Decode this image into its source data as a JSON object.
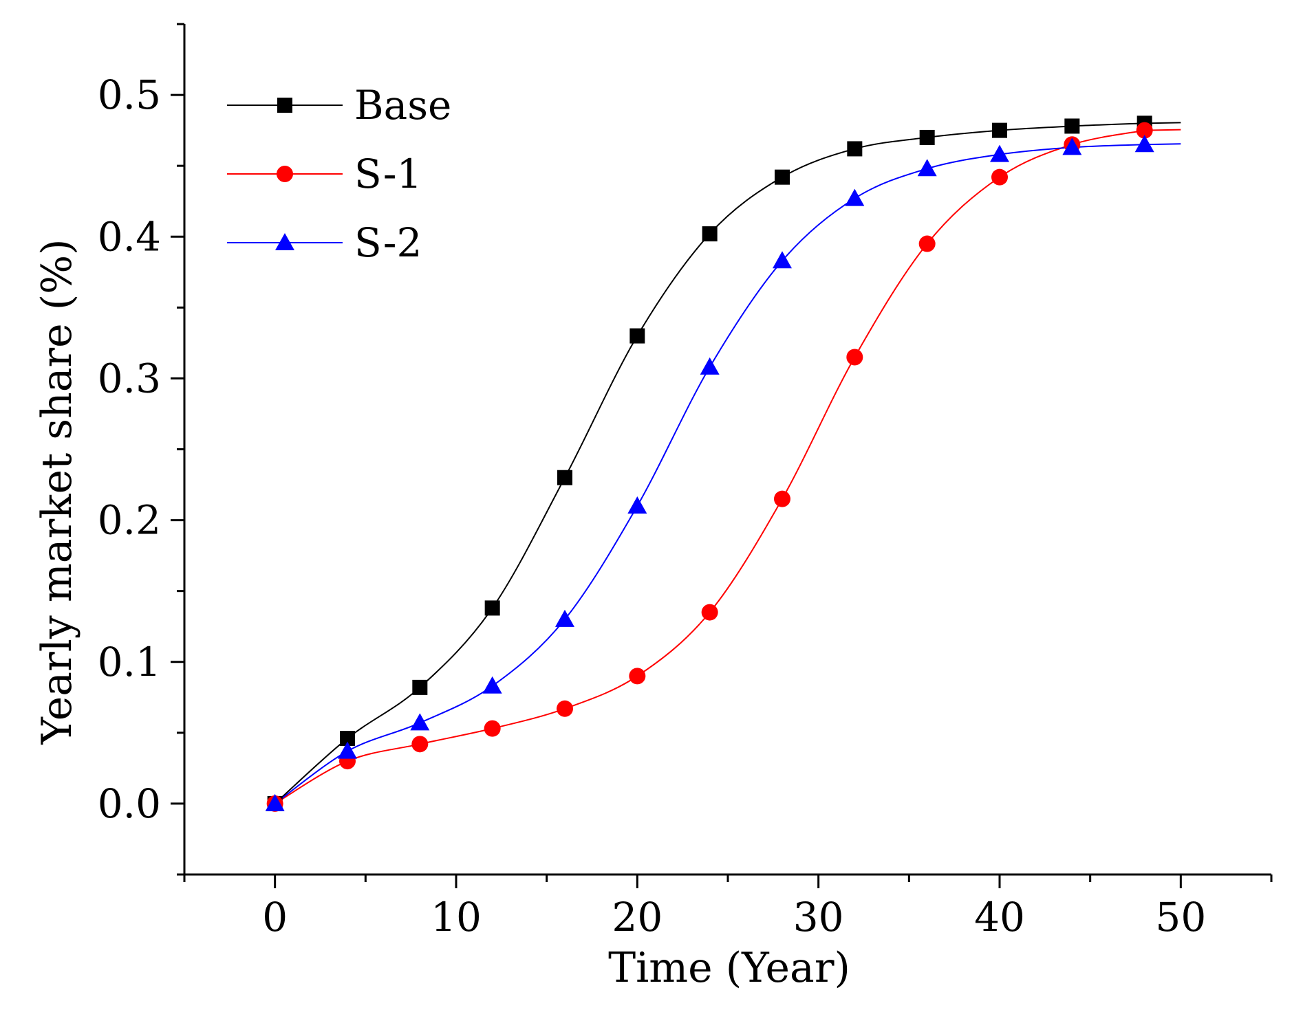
{
  "chart_data": {
    "type": "line",
    "title": "",
    "xlabel": "Time (Year)",
    "ylabel": "Yearly market share (%)",
    "xlim": [
      -5,
      55
    ],
    "ylim": [
      -0.05,
      0.55
    ],
    "x_ticks": [
      0,
      10,
      20,
      30,
      40,
      50
    ],
    "x_tick_labels": [
      "0",
      "10",
      "20",
      "30",
      "40",
      "50"
    ],
    "y_ticks": [
      0.0,
      0.1,
      0.2,
      0.3,
      0.4,
      0.5
    ],
    "y_tick_labels": [
      "0.0",
      "0.1",
      "0.2",
      "0.3",
      "0.4",
      "0.5"
    ],
    "grid": false,
    "legend_position": "top-left",
    "series": [
      {
        "name": "Base",
        "color": "#000000",
        "marker": "square",
        "x": [
          0,
          4,
          8,
          12,
          16,
          20,
          24,
          28,
          32,
          36,
          40,
          44,
          48
        ],
        "y": [
          0.0,
          0.046,
          0.082,
          0.138,
          0.23,
          0.33,
          0.402,
          0.442,
          0.462,
          0.47,
          0.475,
          0.478,
          0.48
        ]
      },
      {
        "name": "S-1",
        "color": "#ff0000",
        "marker": "circle",
        "x": [
          0,
          4,
          8,
          12,
          16,
          20,
          24,
          28,
          32,
          36,
          40,
          44,
          48
        ],
        "y": [
          0.0,
          0.03,
          0.042,
          0.053,
          0.067,
          0.09,
          0.135,
          0.215,
          0.315,
          0.395,
          0.442,
          0.465,
          0.475
        ]
      },
      {
        "name": "S-2",
        "color": "#0000ff",
        "marker": "triangle",
        "x": [
          0,
          4,
          8,
          12,
          16,
          20,
          24,
          28,
          32,
          36,
          40,
          44,
          48
        ],
        "y": [
          0.0,
          0.037,
          0.057,
          0.083,
          0.13,
          0.21,
          0.308,
          0.383,
          0.427,
          0.448,
          0.458,
          0.463,
          0.465
        ]
      }
    ]
  }
}
